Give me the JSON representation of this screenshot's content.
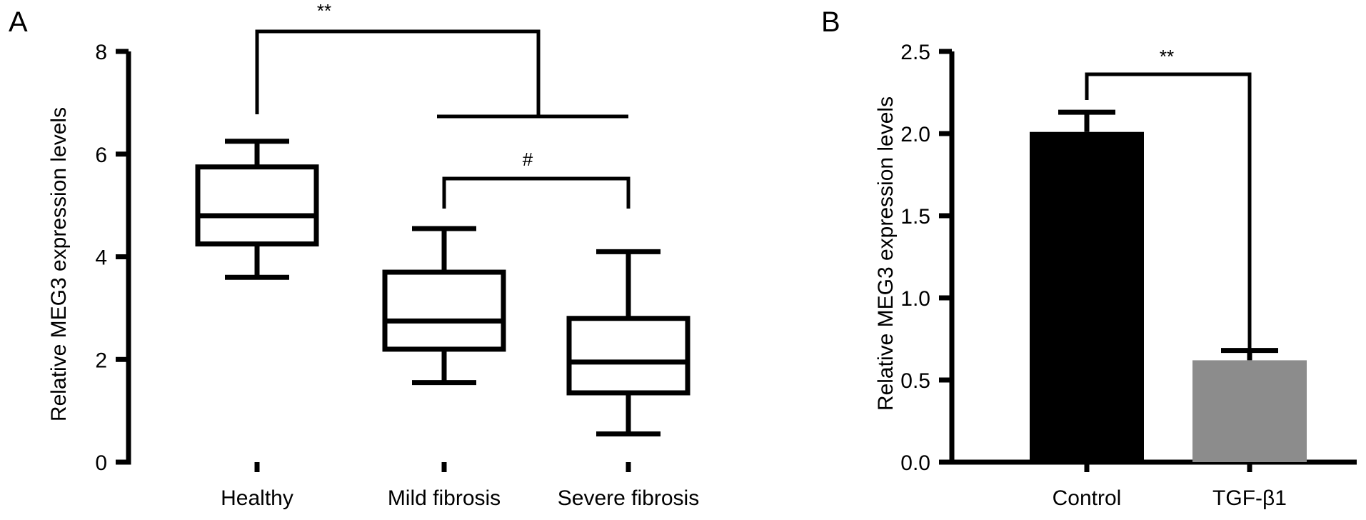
{
  "chart_data": [
    {
      "type": "box",
      "panel_label": "A",
      "ylabel": "Relative MEG3 expression levels",
      "ylim": [
        0,
        8
      ],
      "yticks": [
        "0",
        "2",
        "4",
        "6",
        "8"
      ],
      "categories": [
        "Healthy",
        "Mild fibrosis",
        "Severe fibrosis"
      ],
      "boxes": [
        {
          "whisker_low": 3.6,
          "q1": 4.25,
          "median": 4.8,
          "q3": 5.75,
          "whisker_high": 6.25
        },
        {
          "whisker_low": 1.55,
          "q1": 2.2,
          "median": 2.75,
          "q3": 3.7,
          "whisker_high": 4.55
        },
        {
          "whisker_low": 0.55,
          "q1": 1.35,
          "median": 1.95,
          "q3": 2.8,
          "whisker_high": 4.1
        }
      ],
      "annotations": [
        {
          "text": "**",
          "between": "Healthy vs Mild fibrosis + Severe fibrosis"
        },
        {
          "text": "#",
          "between": "Mild fibrosis vs Severe fibrosis"
        }
      ]
    },
    {
      "type": "bar",
      "panel_label": "B",
      "ylabel": "Relative MEG3 expression levels",
      "ylim": [
        0,
        2.5
      ],
      "yticks": [
        "0.0",
        "0.5",
        "1.0",
        "1.5",
        "2.0",
        "2.5"
      ],
      "categories": [
        "Control",
        "TGF-β1"
      ],
      "values": [
        2.01,
        0.62
      ],
      "errors": [
        0.12,
        0.06
      ],
      "colors": [
        "#000000",
        "#8c8c8c"
      ],
      "annotations": [
        {
          "text": "**",
          "between": "Control vs TGF-β1"
        }
      ]
    }
  ]
}
